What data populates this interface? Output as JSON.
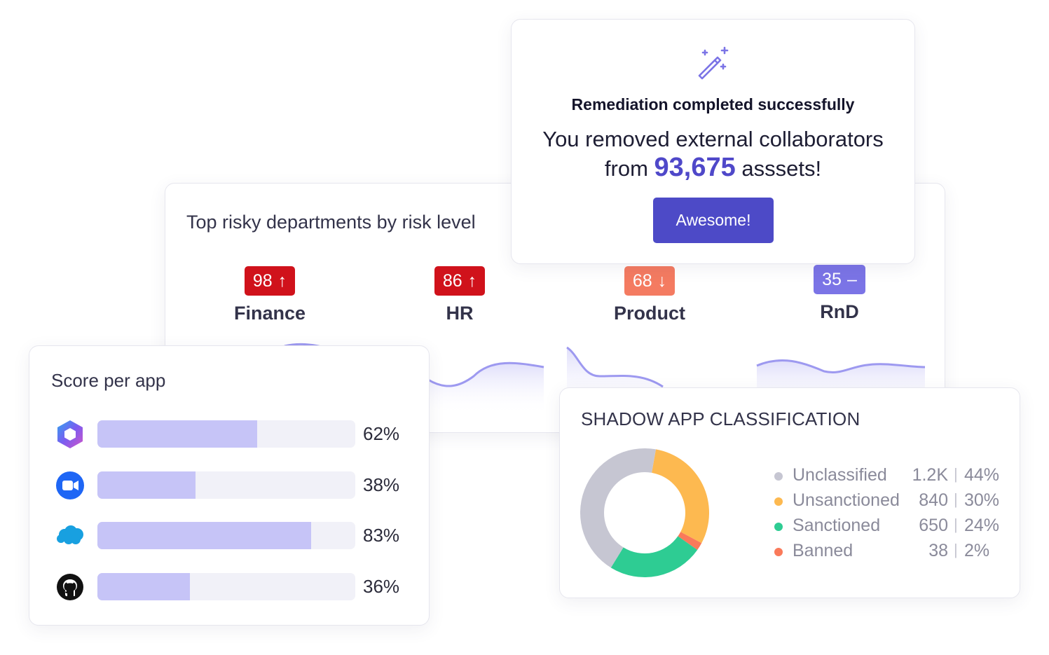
{
  "departments": {
    "title": "Top risky departments by risk level",
    "items": [
      {
        "name": "Finance",
        "score": "98",
        "trend": "up",
        "trend_icon": "↑",
        "color": "#d0121b"
      },
      {
        "name": "HR",
        "score": "86",
        "trend": "up",
        "trend_icon": "↑",
        "color": "#d0121b"
      },
      {
        "name": "Product",
        "score": "68",
        "trend": "down",
        "trend_icon": "↓",
        "color": "#f47b61"
      },
      {
        "name": "RnD",
        "score": "35",
        "trend": "flat",
        "trend_icon": "–",
        "color": "#7b74e6"
      }
    ]
  },
  "remediation": {
    "icon": "magic-wand-icon",
    "title": "Remediation completed successfully",
    "message_line1": "You removed external collaborators",
    "message_prefix": "from",
    "count": "93,675",
    "message_suffix": "asssets!",
    "button_label": "Awesome!"
  },
  "score_per_app": {
    "title": "Score per app",
    "apps": [
      {
        "icon": "microsoft365-icon",
        "percent": 62,
        "label": "62%"
      },
      {
        "icon": "zoom-icon",
        "percent": 38,
        "label": "38%"
      },
      {
        "icon": "salesforce-icon",
        "percent": 83,
        "label": "83%"
      },
      {
        "icon": "github-icon",
        "percent": 36,
        "label": "36%"
      }
    ]
  },
  "shadow_apps": {
    "title": "SHADOW APP CLASSIFICATION",
    "chart_data": {
      "type": "pie",
      "categories": [
        "Unclassified",
        "Unsanctioned",
        "Sanctioned",
        "Banned"
      ],
      "counts": [
        "1.2K",
        "840",
        "650",
        "38"
      ],
      "percent_labels": [
        "44%",
        "30%",
        "24%",
        "2%"
      ],
      "values": [
        44,
        30,
        24,
        2
      ],
      "colors": [
        "#c6c6d2",
        "#fdb950",
        "#2ecc93",
        "#fa7a5a"
      ]
    }
  }
}
